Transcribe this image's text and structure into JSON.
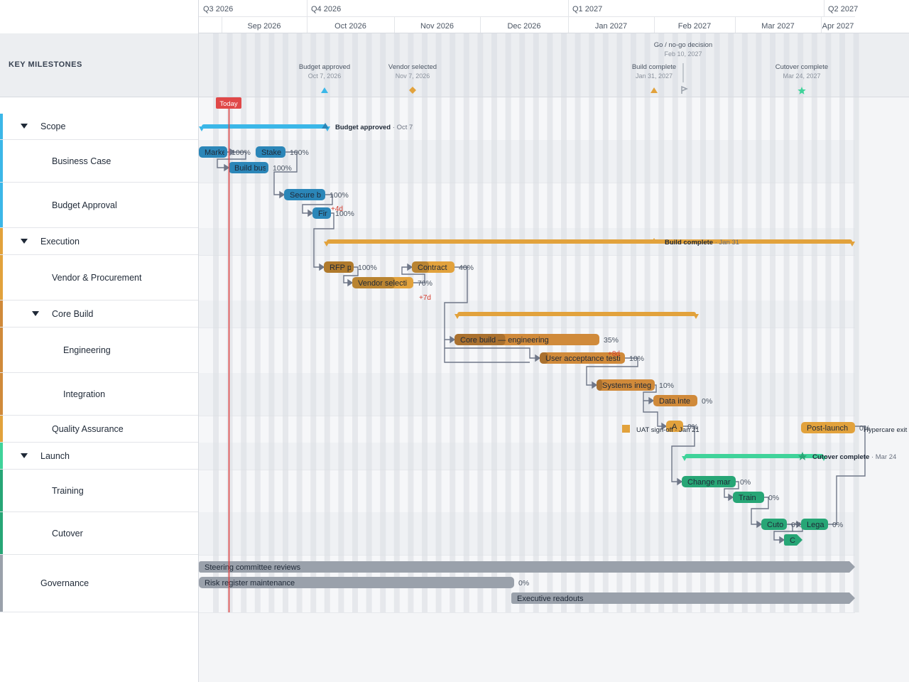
{
  "colors": {
    "scope": "#3bb7e8",
    "scope_dark": "#2b86b8",
    "execution": "#e2a23c",
    "execution_dark": "#b07a2c",
    "core": "#d08a3a",
    "launch": "#3fd39a",
    "launch_dark": "#27a676",
    "governance": "#9aa1ab",
    "today": "#e04848",
    "connector": "#6f7788",
    "slip": "#d33a2c"
  },
  "quarters": [
    "Q3 2026",
    "Q4 2026",
    "Q1 2027",
    "Q2 2027"
  ],
  "months": [
    "Sep 2026",
    "Oct 2026",
    "Nov 2026",
    "Dec 2026",
    "Jan 2027",
    "Feb 2027",
    "Mar 2027",
    "Apr 2027"
  ],
  "milestones_header": "KEY MILESTONES",
  "milestones": [
    {
      "name": "Budget approved",
      "date": "Oct 7, 2026",
      "shape": "triangle",
      "color": "#3bb7e8"
    },
    {
      "name": "Vendor selected",
      "date": "Nov 7, 2026",
      "shape": "diamond",
      "color": "#e2a23c"
    },
    {
      "name": "Build complete",
      "date": "Jan 31, 2027",
      "shape": "triangle",
      "color": "#e2a23c"
    },
    {
      "name": "Go / no-go decision",
      "date": "Feb 10, 2027",
      "shape": "flag",
      "color": "#9aa1ab"
    },
    {
      "name": "Cutover complete",
      "date": "Mar 24, 2027",
      "shape": "star",
      "color": "#3fd39a"
    }
  ],
  "today_label": "Today",
  "rows": [
    {
      "label": "Scope",
      "level": 0,
      "collapsible": true
    },
    {
      "label": "Business Case",
      "level": 1
    },
    {
      "label": "Budget Approval",
      "level": 1
    },
    {
      "label": "Execution",
      "level": 0,
      "collapsible": true
    },
    {
      "label": "Vendor & Procurement",
      "level": 1
    },
    {
      "label": "Core Build",
      "level": 1,
      "collapsible": true
    },
    {
      "label": "Engineering",
      "level": 2
    },
    {
      "label": "Integration",
      "level": 2
    },
    {
      "label": "Quality Assurance",
      "level": 1
    },
    {
      "label": "Launch",
      "level": 0,
      "collapsible": true
    },
    {
      "label": "Training",
      "level": 1
    },
    {
      "label": "Cutover",
      "level": 1
    },
    {
      "label": "Governance",
      "level": 0
    }
  ],
  "summaries": [
    {
      "group": "Scope",
      "milestone_label": "Budget approved",
      "milestone_date": "Oct 7"
    },
    {
      "group": "Execution",
      "milestone_label": "Build complete",
      "milestone_date": "Jan 31"
    },
    {
      "group": "Core Build"
    },
    {
      "group": "Launch",
      "milestone_label": "Cutover complete",
      "milestone_date": "Mar 24"
    }
  ],
  "tasks": [
    {
      "label": "Marke",
      "pct": "100%"
    },
    {
      "label": "Stake",
      "pct": "100%"
    },
    {
      "label": "Build bus",
      "pct": "100%"
    },
    {
      "label": "Secure b",
      "pct": "100%"
    },
    {
      "label": "Fir",
      "pct": "100%",
      "slip": "+4d"
    },
    {
      "label": "RFP p",
      "pct": "100%"
    },
    {
      "label": "Contract",
      "pct": "40%"
    },
    {
      "label": "Vendor selecti",
      "pct": "70%",
      "slip": "+7d"
    },
    {
      "label": "Core build — engineering",
      "pct": "35%"
    },
    {
      "label": "User acceptance testi",
      "pct": "10%",
      "slip": "+8d"
    },
    {
      "label": "Systems integ",
      "pct": "10%"
    },
    {
      "label": "Data inte",
      "pct": "0%"
    },
    {
      "label": "A",
      "pct": "0%"
    },
    {
      "label": "Post-launch",
      "pct": "0%"
    },
    {
      "label": "Change mar",
      "pct": "0%"
    },
    {
      "label": "Train",
      "pct": "0%"
    },
    {
      "label": "Cuto",
      "pct": "0%"
    },
    {
      "label": "Lega",
      "pct": "0%"
    },
    {
      "label": "C",
      "pct": ""
    },
    {
      "label": "Steering committee reviews",
      "pct": ""
    },
    {
      "label": "Risk register maintenance",
      "pct": "0%"
    },
    {
      "label": "Executive readouts",
      "pct": ""
    }
  ],
  "row_milestones": [
    {
      "label": "UAT sign-off",
      "date": "Jan 21"
    },
    {
      "label": "Hypercare exit",
      "date": ""
    }
  ]
}
